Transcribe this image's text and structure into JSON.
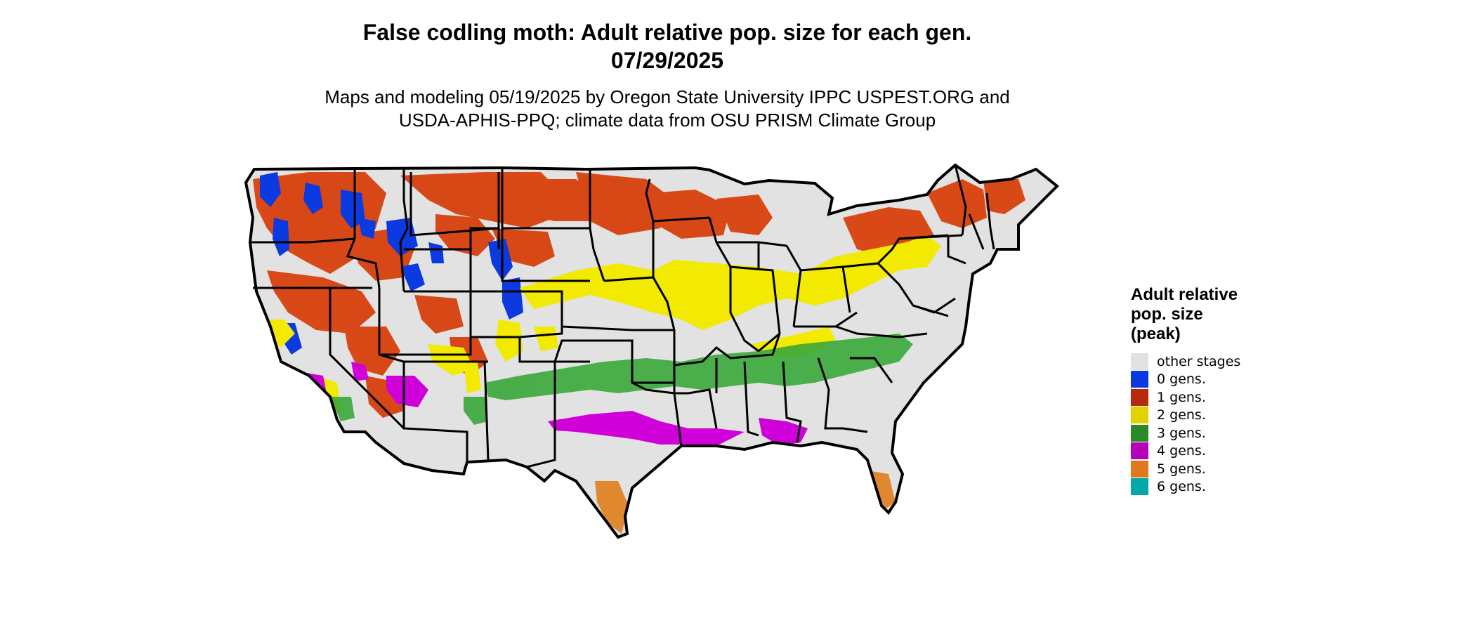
{
  "title": {
    "line1": "False codling moth: Adult relative pop. size for each gen.",
    "line2": "07/29/2025"
  },
  "subtitle": {
    "line1": "Maps and modeling 05/19/2025 by Oregon State University IPPC USPEST.ORG and",
    "line2": "USDA-APHIS-PPQ; climate data from OSU PRISM Climate Group"
  },
  "legend": {
    "title_lines": [
      "Adult relative",
      "pop. size",
      "(peak)"
    ],
    "items": [
      {
        "label": "other stages",
        "color": "#e2e2e2"
      },
      {
        "label": "0 gens.",
        "color": "#0a3ae0"
      },
      {
        "label": "1 gens.",
        "color": "#b82a10"
      },
      {
        "label": "2 gens.",
        "color": "#e2d200"
      },
      {
        "label": "3 gens.",
        "color": "#2a8a2a"
      },
      {
        "label": "4 gens.",
        "color": "#b800b8"
      },
      {
        "label": "5 gens.",
        "color": "#e07820"
      },
      {
        "label": "6 gens.",
        "color": "#00a8a8"
      }
    ]
  },
  "map_colors": {
    "land": "#e2e2e2",
    "border": "#000000",
    "gen0": "#0a3ae0",
    "gen1": "#d8400c",
    "gen2": "#f2ea00",
    "gen3": "#3aa83a",
    "gen4": "#d000d8",
    "gen5": "#e08830",
    "gen6": "#00b8c8"
  }
}
